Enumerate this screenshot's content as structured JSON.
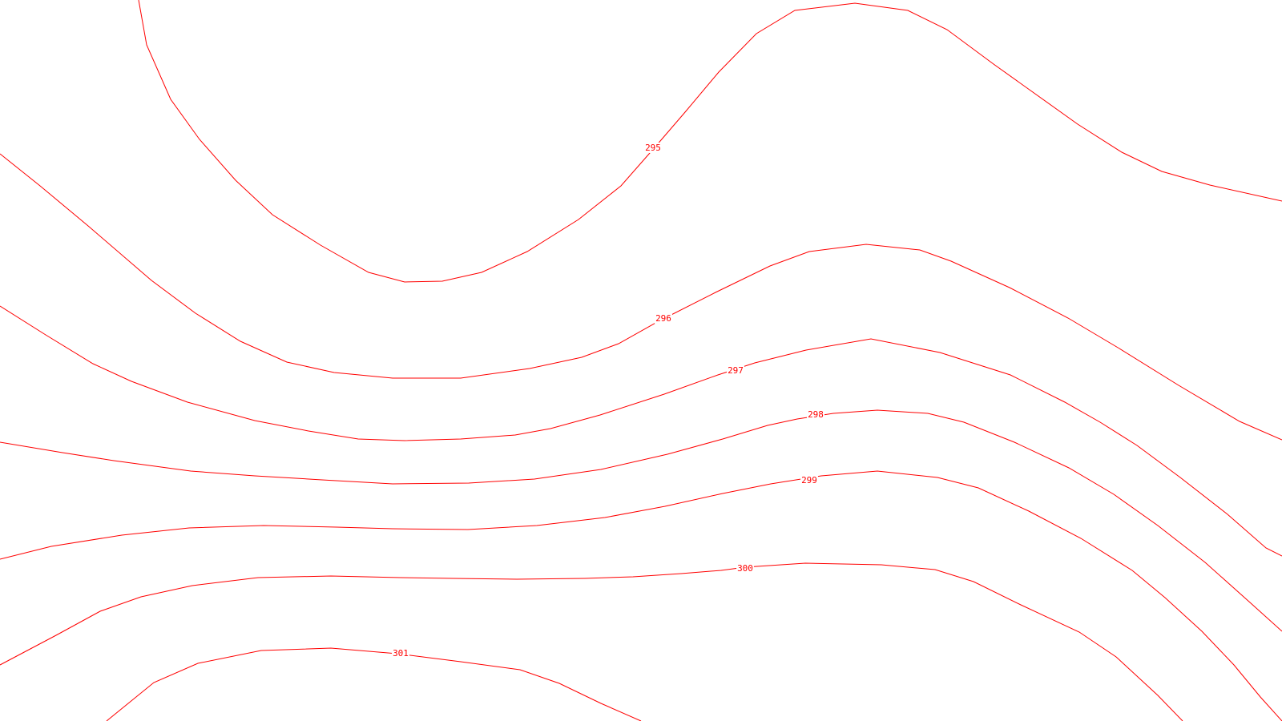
{
  "map": {
    "line_color": "#ff0000",
    "background": "#ffffff",
    "contours": [
      {
        "level": "295"
      },
      {
        "level": "296"
      },
      {
        "level": "297"
      },
      {
        "level": "298"
      },
      {
        "level": "299"
      },
      {
        "level": "300"
      },
      {
        "level": "301"
      }
    ]
  }
}
